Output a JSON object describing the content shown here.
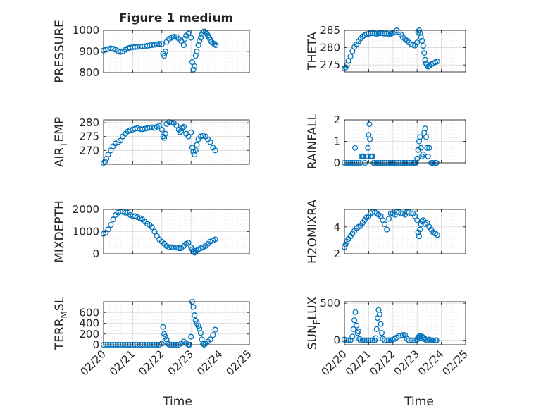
{
  "figure": {
    "title": "Figure 1 medium",
    "xlabel": "Time"
  },
  "colors": {
    "marker": "#0072BD",
    "axis": "#262626",
    "grid": "#d9d9d9",
    "minor_grid": "#e6e6e6"
  },
  "chart_data": [
    {
      "type": "scatter",
      "ylabel": "PRESSURE",
      "ylim": [
        800,
        1000
      ],
      "yticks": [
        800,
        900,
        1000
      ],
      "xlim": [
        0,
        5
      ],
      "xticks": [
        "02/20",
        "02/21",
        "02/22",
        "02/23",
        "02/24",
        "02/25"
      ],
      "grid": true,
      "series": [
        {
          "x": [
            0.0,
            0.08,
            0.16,
            0.25,
            0.33,
            0.41,
            0.5,
            0.58,
            0.66,
            0.75,
            0.83,
            0.91,
            1.0,
            1.08,
            1.16,
            1.25,
            1.33,
            1.41,
            1.5,
            1.58,
            1.66,
            1.75,
            1.83,
            1.91,
            2.0,
            2.04,
            2.08,
            2.12,
            2.16,
            2.25,
            2.33,
            2.41,
            2.5,
            2.58,
            2.66,
            2.75,
            2.79,
            2.83,
            2.91,
            3.0,
            3.04,
            3.08,
            3.12,
            3.16,
            3.2,
            3.25,
            3.29,
            3.33,
            3.37,
            3.41,
            3.45,
            3.5,
            3.54,
            3.58,
            3.62,
            3.66,
            3.7,
            3.75,
            3.8,
            3.85
          ],
          "y": [
            905,
            908,
            912,
            915,
            913,
            908,
            902,
            898,
            900,
            908,
            915,
            918,
            920,
            921,
            922,
            923,
            924,
            925,
            927,
            929,
            930,
            932,
            934,
            936,
            935,
            890,
            880,
            900,
            945,
            960,
            965,
            970,
            968,
            960,
            950,
            930,
            960,
            975,
            985,
            965,
            850,
            815,
            830,
            880,
            900,
            930,
            950,
            965,
            980,
            990,
            995,
            990,
            985,
            975,
            965,
            955,
            945,
            940,
            935,
            930
          ]
        }
      ]
    },
    {
      "type": "scatter",
      "ylabel": "THETA",
      "ylim": [
        273,
        285
      ],
      "yticks": [
        275,
        280,
        285
      ],
      "xlim": [
        0,
        5
      ],
      "xticks": [
        "02/20",
        "02/21",
        "02/22",
        "02/23",
        "02/24",
        "02/25"
      ],
      "grid": true,
      "series": [
        {
          "x": [
            0.0,
            0.05,
            0.1,
            0.16,
            0.25,
            0.33,
            0.41,
            0.5,
            0.58,
            0.66,
            0.75,
            0.83,
            0.91,
            1.0,
            1.08,
            1.16,
            1.25,
            1.33,
            1.41,
            1.5,
            1.58,
            1.66,
            1.75,
            1.83,
            1.91,
            2.0,
            2.08,
            2.16,
            2.25,
            2.33,
            2.41,
            2.5,
            2.58,
            2.66,
            2.75,
            2.83,
            2.91,
            3.0,
            3.04,
            3.08,
            3.12,
            3.16,
            3.2,
            3.25,
            3.29,
            3.33,
            3.37,
            3.41,
            3.45,
            3.5,
            3.58,
            3.66,
            3.75,
            3.83
          ],
          "y": [
            274.0,
            274.3,
            275.0,
            276.2,
            277.5,
            279.0,
            280.2,
            281.0,
            281.8,
            282.6,
            283.2,
            283.6,
            283.9,
            284.0,
            284.1,
            284.2,
            284.1,
            284.0,
            284.1,
            284.2,
            284.1,
            284.0,
            284.1,
            283.9,
            284.0,
            284.2,
            284.4,
            285.0,
            284.5,
            283.8,
            283.0,
            282.5,
            282.0,
            281.5,
            281.0,
            280.8,
            280.6,
            281.5,
            284.5,
            285.0,
            284.2,
            283.0,
            282.0,
            280.5,
            278.5,
            276.5,
            275.5,
            275.0,
            274.5,
            274.7,
            275.2,
            275.5,
            275.8,
            276.0
          ]
        }
      ]
    },
    {
      "type": "scatter",
      "ylabel_main": "AIR",
      "ylabel_sub": "T",
      "ylabel_rest": "EMP",
      "ylim": [
        265,
        281
      ],
      "yticks": [
        270,
        275,
        280
      ],
      "xlim": [
        0,
        5
      ],
      "xticks": [
        "02/20",
        "02/21",
        "02/22",
        "02/23",
        "02/24",
        "02/25"
      ],
      "grid": true,
      "series": [
        {
          "x": [
            0.0,
            0.05,
            0.1,
            0.16,
            0.25,
            0.33,
            0.41,
            0.5,
            0.58,
            0.66,
            0.75,
            0.83,
            0.91,
            1.0,
            1.08,
            1.16,
            1.25,
            1.33,
            1.41,
            1.5,
            1.58,
            1.66,
            1.75,
            1.83,
            1.91,
            2.0,
            2.04,
            2.08,
            2.12,
            2.16,
            2.25,
            2.33,
            2.41,
            2.5,
            2.58,
            2.62,
            2.66,
            2.7,
            2.75,
            2.83,
            2.91,
            3.0,
            3.04,
            3.08,
            3.12,
            3.16,
            3.2,
            3.25,
            3.33,
            3.41,
            3.5,
            3.58,
            3.66,
            3.75,
            3.83
          ],
          "y": [
            265.5,
            266.0,
            267.0,
            268.5,
            270.0,
            271.5,
            272.5,
            273.0,
            273.5,
            275.0,
            276.0,
            276.8,
            277.3,
            277.5,
            277.8,
            278.0,
            277.7,
            277.6,
            277.8,
            278.0,
            278.2,
            278.3,
            278.1,
            278.5,
            278.8,
            277.5,
            275.0,
            274.5,
            276.0,
            279.5,
            280.2,
            280.0,
            279.8,
            279.0,
            277.5,
            276.5,
            277.0,
            278.0,
            278.5,
            276.0,
            275.0,
            276.5,
            271.0,
            269.5,
            268.5,
            270.0,
            272.0,
            274.0,
            275.0,
            275.2,
            275.0,
            274.0,
            273.0,
            271.0,
            270.0
          ]
        }
      ]
    },
    {
      "type": "scatter",
      "ylabel": "RAINFALL",
      "ylim": [
        0,
        2
      ],
      "yticks": [
        0,
        1,
        2
      ],
      "xlim": [
        0,
        5
      ],
      "xticks": [
        "02/20",
        "02/21",
        "02/22",
        "02/23",
        "02/24",
        "02/25"
      ],
      "grid": true,
      "series": [
        {
          "x": [
            0.0,
            0.08,
            0.16,
            0.25,
            0.33,
            0.41,
            0.44,
            0.5,
            0.58,
            0.66,
            0.7,
            0.75,
            0.8,
            0.85,
            0.9,
            0.95,
            0.97,
            1.0,
            1.03,
            1.05,
            1.08,
            1.12,
            1.16,
            1.2,
            1.25,
            1.33,
            1.41,
            1.5,
            1.58,
            1.66,
            1.75,
            1.83,
            1.91,
            2.0,
            2.08,
            2.16,
            2.25,
            2.33,
            2.41,
            2.5,
            2.58,
            2.66,
            2.75,
            2.83,
            2.88,
            2.91,
            2.95,
            3.0,
            3.04,
            3.08,
            3.12,
            3.16,
            3.2,
            3.25,
            3.29,
            3.33,
            3.37,
            3.41,
            3.45,
            3.5,
            3.58,
            3.66,
            3.75,
            3.8
          ],
          "y": [
            0,
            0,
            0,
            0,
            0,
            0,
            0.7,
            0,
            0,
            0,
            0.3,
            0.3,
            0.3,
            0,
            0.3,
            0.3,
            0.7,
            1.3,
            1.8,
            1.1,
            0.3,
            0.3,
            0.3,
            0,
            0,
            0,
            0,
            0,
            0,
            0,
            0,
            0,
            0,
            0,
            0,
            0,
            0,
            0,
            0,
            0,
            0,
            0,
            0,
            0,
            0,
            0,
            0,
            0.2,
            0.6,
            1.0,
            1.2,
            0.7,
            0.3,
            0.4,
            1.4,
            1.6,
            1.2,
            0.7,
            0.3,
            0.7,
            0,
            0,
            0,
            0
          ]
        }
      ]
    },
    {
      "type": "scatter",
      "ylabel": "MIXDEPTH",
      "ylim": [
        0,
        2000
      ],
      "yticks": [
        0,
        1000,
        2000
      ],
      "xlim": [
        0,
        5
      ],
      "xticks": [
        "02/20",
        "02/21",
        "02/22",
        "02/23",
        "02/24",
        "02/25"
      ],
      "grid": true,
      "series": [
        {
          "x": [
            0.0,
            0.08,
            0.16,
            0.25,
            0.33,
            0.41,
            0.5,
            0.58,
            0.66,
            0.75,
            0.83,
            0.91,
            1.0,
            1.08,
            1.16,
            1.25,
            1.33,
            1.41,
            1.5,
            1.58,
            1.66,
            1.75,
            1.83,
            1.91,
            2.0,
            2.08,
            2.16,
            2.25,
            2.33,
            2.41,
            2.5,
            2.58,
            2.66,
            2.75,
            2.83,
            2.91,
            3.0,
            3.04,
            3.08,
            3.12,
            3.16,
            3.2,
            3.25,
            3.33,
            3.41,
            3.5,
            3.58,
            3.66,
            3.75,
            3.83
          ],
          "y": [
            900,
            950,
            1100,
            1300,
            1550,
            1750,
            1850,
            1900,
            1900,
            1850,
            1850,
            1750,
            1700,
            1700,
            1650,
            1600,
            1550,
            1450,
            1350,
            1300,
            1200,
            1000,
            800,
            650,
            550,
            450,
            350,
            300,
            300,
            280,
            280,
            250,
            250,
            350,
            450,
            500,
            300,
            200,
            100,
            50,
            100,
            150,
            200,
            250,
            300,
            350,
            450,
            550,
            600,
            650
          ]
        }
      ]
    },
    {
      "type": "scatter",
      "ylabel": "H2OMIXRA",
      "ylim": [
        2,
        5.3
      ],
      "yticks": [
        2,
        4
      ],
      "xlim": [
        0,
        5
      ],
      "xticks": [
        "02/20",
        "02/21",
        "02/22",
        "02/23",
        "02/24",
        "02/25"
      ],
      "grid": true,
      "series": [
        {
          "x": [
            0.0,
            0.05,
            0.1,
            0.16,
            0.25,
            0.33,
            0.41,
            0.5,
            0.58,
            0.66,
            0.75,
            0.83,
            0.91,
            1.0,
            1.08,
            1.16,
            1.25,
            1.33,
            1.41,
            1.5,
            1.58,
            1.66,
            1.75,
            1.83,
            1.91,
            2.0,
            2.08,
            2.16,
            2.25,
            2.33,
            2.41,
            2.5,
            2.58,
            2.66,
            2.75,
            2.83,
            2.91,
            3.0,
            3.04,
            3.08,
            3.12,
            3.16,
            3.2,
            3.25,
            3.33,
            3.41,
            3.5,
            3.58,
            3.66,
            3.75,
            3.83
          ],
          "y": [
            2.5,
            2.7,
            2.9,
            3.1,
            3.3,
            3.5,
            3.7,
            3.9,
            4.0,
            4.1,
            4.3,
            4.5,
            4.7,
            4.8,
            5.0,
            5.1,
            5.1,
            5.0,
            4.9,
            4.8,
            4.5,
            4.2,
            3.8,
            4.6,
            5.0,
            5.0,
            4.9,
            5.1,
            5.1,
            5.0,
            5.0,
            4.9,
            5.1,
            5.1,
            5.0,
            5.0,
            4.8,
            4.5,
            3.6,
            3.3,
            3.8,
            4.2,
            4.4,
            4.5,
            4.2,
            4.3,
            4.0,
            3.8,
            3.6,
            3.5,
            3.4
          ]
        }
      ]
    },
    {
      "type": "scatter",
      "ylabel_main": "TERR",
      "ylabel_sub": "M",
      "ylabel_rest": "SL",
      "ylim": [
        0,
        800
      ],
      "yticks": [
        0,
        200,
        400,
        600
      ],
      "xlim": [
        0,
        5
      ],
      "xticks": [
        "02/20",
        "02/21",
        "02/22",
        "02/23",
        "02/24",
        "02/25"
      ],
      "grid": true,
      "series": [
        {
          "x": [
            0.0,
            0.08,
            0.16,
            0.25,
            0.33,
            0.41,
            0.5,
            0.58,
            0.66,
            0.75,
            0.83,
            0.91,
            1.0,
            1.08,
            1.16,
            1.25,
            1.33,
            1.41,
            1.5,
            1.58,
            1.66,
            1.75,
            1.83,
            1.91,
            2.0,
            2.04,
            2.08,
            2.12,
            2.16,
            2.2,
            2.25,
            2.33,
            2.41,
            2.5,
            2.58,
            2.66,
            2.75,
            2.83,
            2.91,
            2.95,
            3.0,
            3.04,
            3.08,
            3.12,
            3.16,
            3.2,
            3.25,
            3.29,
            3.33,
            3.37,
            3.41,
            3.45,
            3.5,
            3.58,
            3.66,
            3.75,
            3.83
          ],
          "y": [
            0,
            0,
            0,
            0,
            0,
            0,
            0,
            0,
            0,
            0,
            0,
            0,
            0,
            0,
            0,
            0,
            0,
            0,
            0,
            0,
            0,
            0,
            0,
            0,
            20,
            330,
            200,
            150,
            100,
            20,
            0,
            0,
            0,
            0,
            0,
            20,
            60,
            30,
            0,
            0,
            150,
            800,
            700,
            550,
            450,
            400,
            350,
            300,
            220,
            100,
            20,
            0,
            20,
            60,
            100,
            180,
            280
          ]
        }
      ]
    },
    {
      "type": "scatter",
      "ylabel_main": "SUN",
      "ylabel_sub": "F",
      "ylabel_rest": "LUX",
      "ylim": [
        -60,
        520
      ],
      "yticks": [
        0,
        500
      ],
      "xlim": [
        0,
        5
      ],
      "xticks": [
        "02/20",
        "02/21",
        "02/22",
        "02/23",
        "02/24",
        "02/25"
      ],
      "grid": true,
      "series": [
        {
          "x": [
            0.0,
            0.08,
            0.16,
            0.25,
            0.33,
            0.37,
            0.41,
            0.45,
            0.5,
            0.54,
            0.58,
            0.62,
            0.66,
            0.75,
            0.83,
            0.91,
            1.0,
            1.08,
            1.16,
            1.25,
            1.29,
            1.33,
            1.37,
            1.41,
            1.45,
            1.5,
            1.54,
            1.58,
            1.66,
            1.75,
            1.83,
            1.91,
            2.0,
            2.08,
            2.16,
            2.25,
            2.33,
            2.41,
            2.5,
            2.58,
            2.66,
            2.75,
            2.83,
            2.91,
            3.0,
            3.04,
            3.08,
            3.12,
            3.16,
            3.2,
            3.25,
            3.29,
            3.33,
            3.41,
            3.5,
            3.58,
            3.66,
            3.75,
            3.8
          ],
          "y": [
            10,
            0,
            0,
            0,
            50,
            150,
            270,
            380,
            200,
            100,
            120,
            20,
            0,
            0,
            0,
            0,
            0,
            0,
            0,
            0,
            30,
            150,
            300,
            410,
            350,
            220,
            100,
            20,
            0,
            0,
            0,
            0,
            10,
            20,
            40,
            60,
            60,
            70,
            70,
            20,
            0,
            0,
            0,
            0,
            10,
            40,
            50,
            60,
            30,
            50,
            40,
            30,
            10,
            0,
            10,
            0,
            0,
            0,
            0
          ]
        }
      ]
    }
  ]
}
